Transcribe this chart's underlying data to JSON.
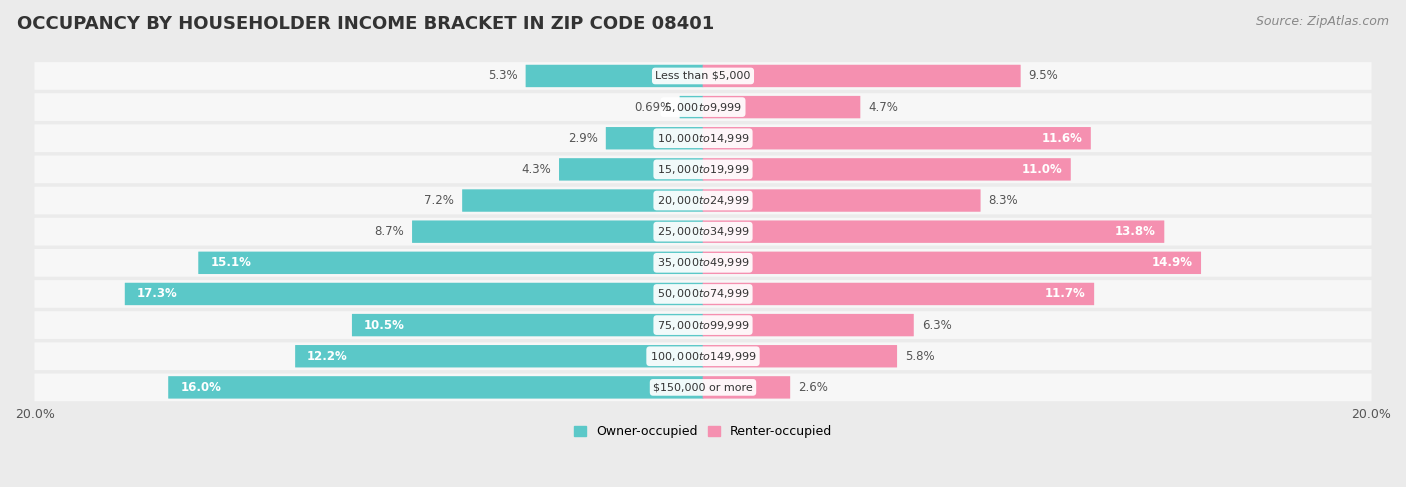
{
  "title": "OCCUPANCY BY HOUSEHOLDER INCOME BRACKET IN ZIP CODE 08401",
  "source": "Source: ZipAtlas.com",
  "categories": [
    "Less than $5,000",
    "$5,000 to $9,999",
    "$10,000 to $14,999",
    "$15,000 to $19,999",
    "$20,000 to $24,999",
    "$25,000 to $34,999",
    "$35,000 to $49,999",
    "$50,000 to $74,999",
    "$75,000 to $99,999",
    "$100,000 to $149,999",
    "$150,000 or more"
  ],
  "owner_values": [
    5.3,
    0.69,
    2.9,
    4.3,
    7.2,
    8.7,
    15.1,
    17.3,
    10.5,
    12.2,
    16.0
  ],
  "renter_values": [
    9.5,
    4.7,
    11.6,
    11.0,
    8.3,
    13.8,
    14.9,
    11.7,
    6.3,
    5.8,
    2.6
  ],
  "owner_color": "#5BC8C8",
  "renter_color": "#F590B0",
  "owner_label": "Owner-occupied",
  "renter_label": "Renter-occupied",
  "xlim": 20.0,
  "bg_color": "#ebebeb",
  "bar_bg_color": "#f7f7f7",
  "title_fontsize": 13,
  "source_fontsize": 9,
  "bar_label_fontsize": 8.5,
  "cat_label_fontsize": 8.0,
  "legend_fontsize": 9,
  "owner_inside_threshold": 10.0,
  "renter_inside_threshold": 10.0
}
